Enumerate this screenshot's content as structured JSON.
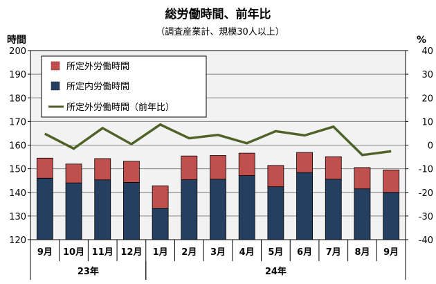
{
  "chart_data": {
    "type": "bar",
    "title": "総労働時間、前年比",
    "subtitle": "（調査産業計、規模30人以上）",
    "ylabel_left": "時間",
    "ylabel_right": "%",
    "ylim_left": [
      120,
      200
    ],
    "yticks_left": [
      "120",
      "130",
      "140",
      "150",
      "160",
      "170",
      "180",
      "190",
      "200"
    ],
    "ylim_right": [
      -40,
      40
    ],
    "yticks_right": [
      "-40",
      "-30",
      "-20",
      "-10",
      "0",
      "10",
      "20",
      "30",
      "40"
    ],
    "grid": true,
    "legend_position": "top-left",
    "categories": [
      "9月",
      "10月",
      "11月",
      "12月",
      "1月",
      "2月",
      "3月",
      "4月",
      "5月",
      "6月",
      "7月",
      "8月",
      "9月"
    ],
    "year_groups": [
      {
        "label": "23年",
        "start": 0,
        "end": 3
      },
      {
        "label": "24年",
        "start": 4,
        "end": 12
      }
    ],
    "series": [
      {
        "name": "所定外労働時間",
        "kind": "stacked-bar",
        "color": "#c0504d",
        "values": [
          8.5,
          8.0,
          9.0,
          9.0,
          9.5,
          10.0,
          10.0,
          9.5,
          9.0,
          8.5,
          9.5,
          9.0,
          9.5
        ]
      },
      {
        "name": "所定内労働時間",
        "kind": "stacked-bar",
        "color": "#243f60",
        "values": [
          146.0,
          144.0,
          145.3,
          144.2,
          133.3,
          145.4,
          145.6,
          147.1,
          142.4,
          148.4,
          145.6,
          141.5,
          140.0
        ]
      },
      {
        "name": "所定外労働時間（前年比）",
        "kind": "line",
        "axis": "right",
        "color": "#4f6228",
        "values": [
          4.8,
          -1.5,
          7.2,
          0.4,
          8.7,
          2.9,
          4.3,
          0.8,
          5.9,
          4.1,
          7.8,
          -4.2,
          -2.6
        ]
      }
    ]
  }
}
